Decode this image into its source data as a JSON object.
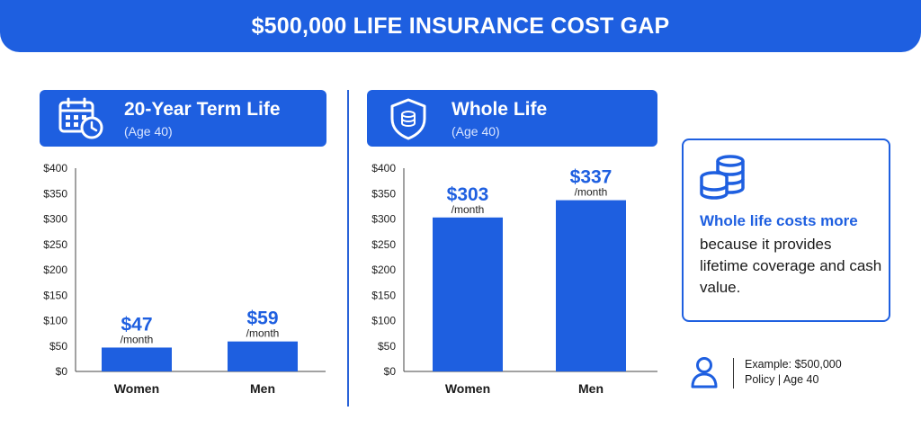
{
  "title": "$500,000 LIFE INSURANCE COST GAP",
  "panels": [
    {
      "title": "20-Year Term Life",
      "subtitle": "(Age 40)",
      "icon": "calendar-clock-icon"
    },
    {
      "title": "Whole Life",
      "subtitle": "(Age 40)",
      "icon": "shield-coins-icon"
    }
  ],
  "chart_data": [
    {
      "type": "bar",
      "title": "20-Year Term Life",
      "categories": [
        "Women",
        "Men"
      ],
      "values": [
        47,
        59
      ],
      "data_labels": [
        "$47",
        "$59"
      ],
      "data_label_unit": "/month",
      "ylim": [
        0,
        400
      ],
      "yticks": [
        0,
        50,
        100,
        150,
        200,
        250,
        300,
        350,
        400
      ],
      "ytick_labels": [
        "$0",
        "$50",
        "$100",
        "$150",
        "$200",
        "$250",
        "$300",
        "$350",
        "$400"
      ],
      "bar_color": "#1e5fe0",
      "grid": false
    },
    {
      "type": "bar",
      "title": "Whole Life",
      "categories": [
        "Women",
        "Men"
      ],
      "values": [
        303,
        337
      ],
      "data_labels": [
        "$303",
        "$337"
      ],
      "data_label_unit": "/month",
      "ylim": [
        0,
        400
      ],
      "yticks": [
        0,
        50,
        100,
        150,
        200,
        250,
        300,
        350,
        400
      ],
      "ytick_labels": [
        "$0",
        "$50",
        "$100",
        "$150",
        "$200",
        "$250",
        "$300",
        "$350",
        "$400"
      ],
      "bar_color": "#1e5fe0",
      "grid": false
    }
  ],
  "info": {
    "heading": "Whole life costs more",
    "body": "because it provides lifetime coverage and cash value.",
    "icon": "coins-icon"
  },
  "example": {
    "line1": "Example: $500,000",
    "line2": "Policy | Age 40",
    "icon": "person-icon"
  },
  "colors": {
    "accent": "#1e5fe0",
    "text": "#1a1a1a"
  }
}
